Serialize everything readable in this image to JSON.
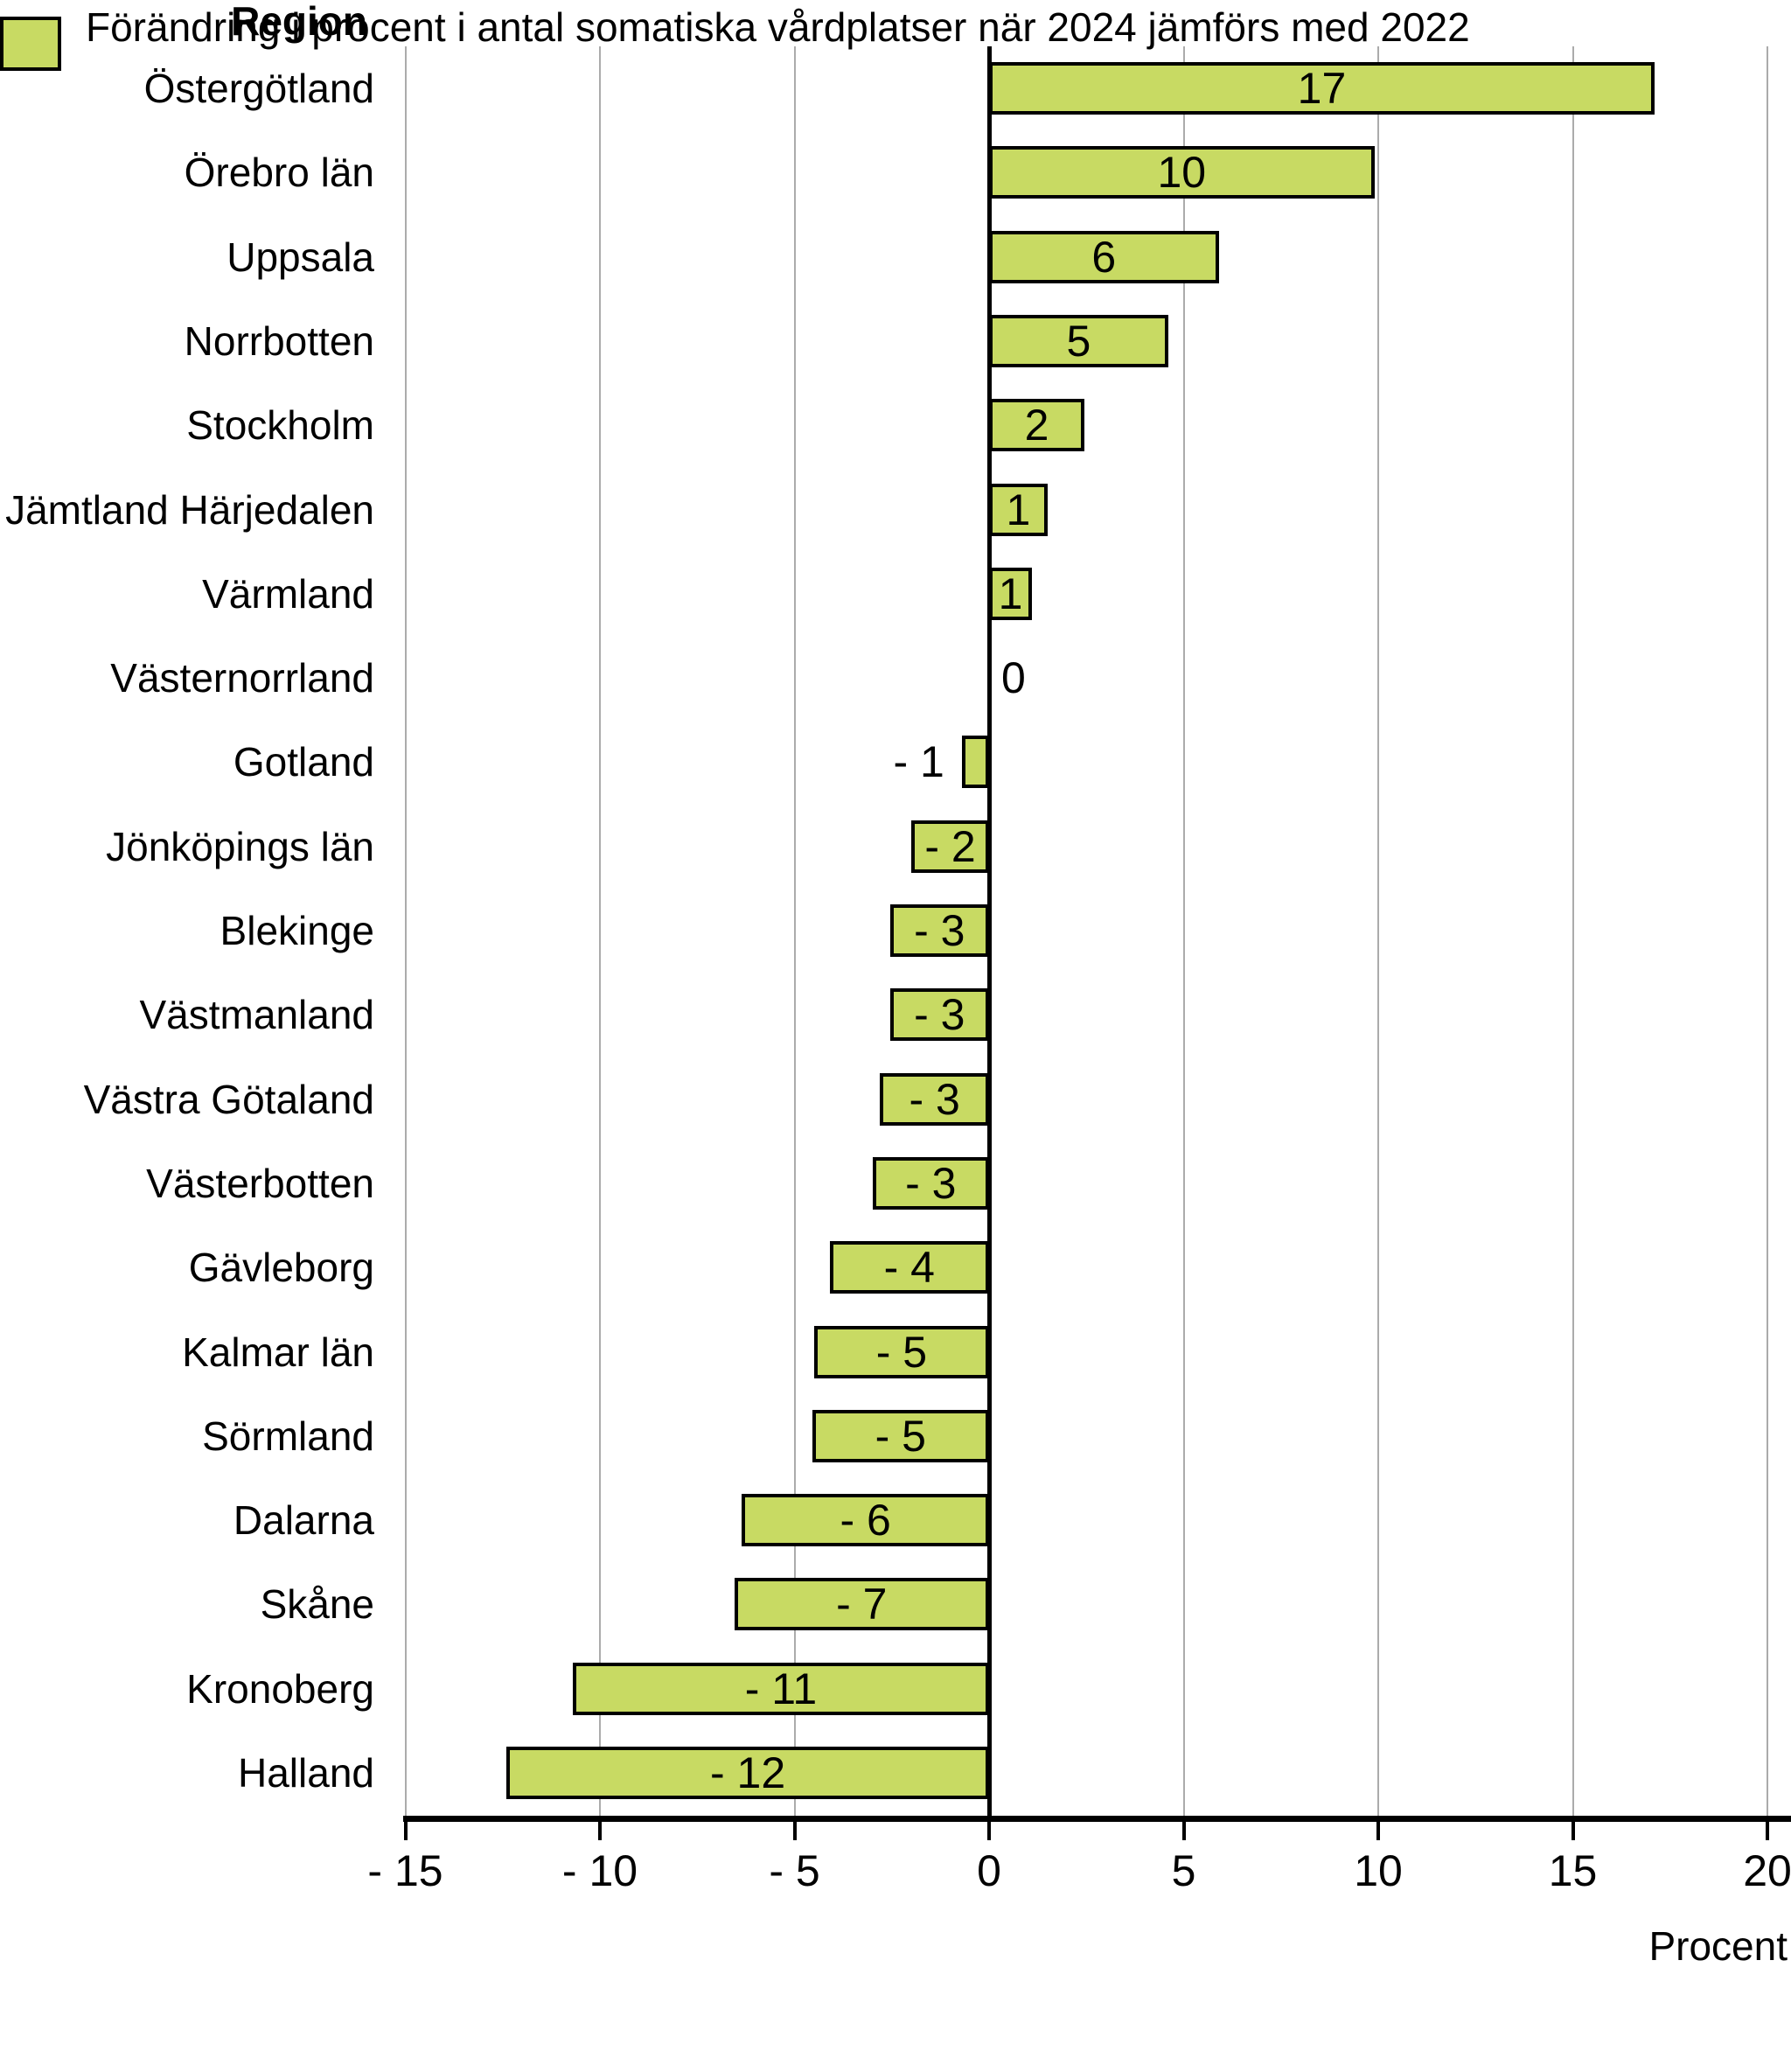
{
  "header": {
    "title": "Region"
  },
  "axis": {
    "xlabel": "Procent"
  },
  "chart_data": {
    "type": "bar",
    "orientation": "horizontal",
    "title": "Region",
    "xlabel": "Procent",
    "xlim": [
      -15,
      20
    ],
    "xticks": [
      -15,
      -10,
      -5,
      0,
      5,
      10,
      15,
      20
    ],
    "xtick_labels": [
      "- 15",
      "- 10",
      "- 5",
      "0",
      "5",
      "10",
      "15",
      "20"
    ],
    "grid": "vertical-gridlines",
    "legend_position": "bottom-left",
    "categories": [
      "Östergötland",
      "Örebro län",
      "Uppsala",
      "Norrbotten",
      "Stockholm",
      "Jämtland Härjedalen",
      "Värmland",
      "Västernorrland",
      "Gotland",
      "Jönköpings län",
      "Blekinge",
      "Västmanland",
      "Västra Götaland",
      "Västerbotten",
      "Gävleborg",
      "Kalmar län",
      "Sörmland",
      "Dalarna",
      "Skåne",
      "Kronoberg",
      "Halland"
    ],
    "values": [
      17,
      10,
      6,
      5,
      2,
      1,
      1,
      0,
      -1,
      -2,
      -3,
      -3,
      -3,
      -3,
      -4,
      -5,
      -5,
      -6,
      -7,
      -11,
      -12
    ],
    "value_labels": [
      "17",
      "10",
      "6",
      "5",
      "2",
      "1",
      "1",
      "0",
      "- 1",
      "- 2",
      "- 3",
      "- 3",
      "- 3",
      "- 3",
      "- 4",
      "- 5",
      "- 5",
      "- 6",
      "- 7",
      "- 11",
      "- 12"
    ],
    "bar_lengths_measured": [
      17.1,
      9.9,
      5.9,
      4.6,
      2.45,
      1.5,
      1.1,
      0,
      -0.7,
      -2.0,
      -2.55,
      -2.55,
      -2.8,
      -3.0,
      -4.1,
      -4.5,
      -4.55,
      -6.35,
      -6.55,
      -10.7,
      -12.4
    ],
    "value_label_placement": [
      "inside",
      "inside",
      "inside",
      "inside",
      "inside",
      "inside",
      "inside",
      "axis-right",
      "left-of-bar",
      "inside",
      "inside",
      "inside",
      "inside",
      "inside",
      "inside",
      "inside",
      "inside",
      "inside",
      "inside",
      "inside",
      "inside"
    ],
    "legend": [
      {
        "label": "Förändring i procent i antal somatiska vårdplatser när 2024 jämförs med 2022",
        "color": "#c8da63"
      }
    ],
    "colors": {
      "bar_fill": "#c8da63",
      "bar_border": "#000000",
      "gridline": "#ababab",
      "axis": "#000000",
      "text": "#000000",
      "background": "#ffffff"
    }
  }
}
